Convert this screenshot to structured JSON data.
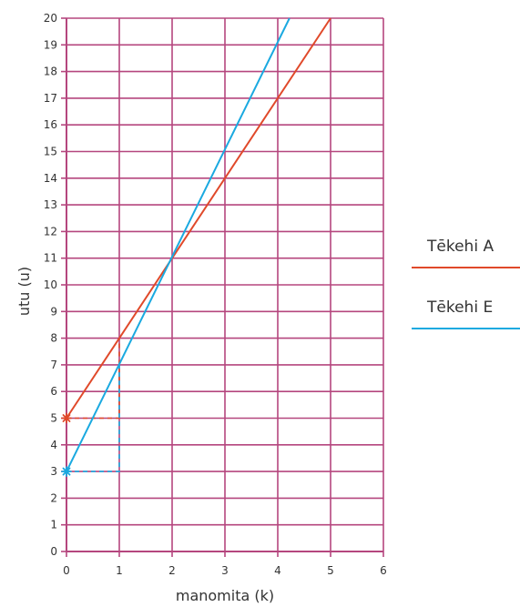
{
  "chart_data": {
    "type": "line",
    "xlabel": "manomita (k)",
    "ylabel": "utu (u)",
    "xlim": [
      0,
      6
    ],
    "ylim": [
      0,
      20
    ],
    "x_ticks": [
      0,
      1,
      2,
      3,
      4,
      5,
      6
    ],
    "y_ticks": [
      0,
      1,
      2,
      3,
      4,
      5,
      6,
      7,
      8,
      9,
      10,
      11,
      12,
      13,
      14,
      15,
      16,
      17,
      18,
      19,
      20
    ],
    "grid": true,
    "grid_color": "#b5467e",
    "legend_position": "right",
    "series": [
      {
        "name": "Tēkehi A",
        "color": "#e0492a",
        "points": [
          [
            0,
            5
          ],
          [
            5,
            20
          ]
        ],
        "marker_at": [
          0,
          5
        ],
        "guide": [
          [
            0,
            5
          ],
          [
            1,
            5
          ],
          [
            1,
            8
          ]
        ]
      },
      {
        "name": "Tēkehi E",
        "color": "#1aa9e0",
        "points": [
          [
            0,
            3
          ],
          [
            4.222,
            20
          ]
        ],
        "marker_at": [
          0,
          3
        ],
        "guide": [
          [
            0,
            3
          ],
          [
            1,
            3
          ],
          [
            1,
            7
          ]
        ]
      }
    ]
  }
}
